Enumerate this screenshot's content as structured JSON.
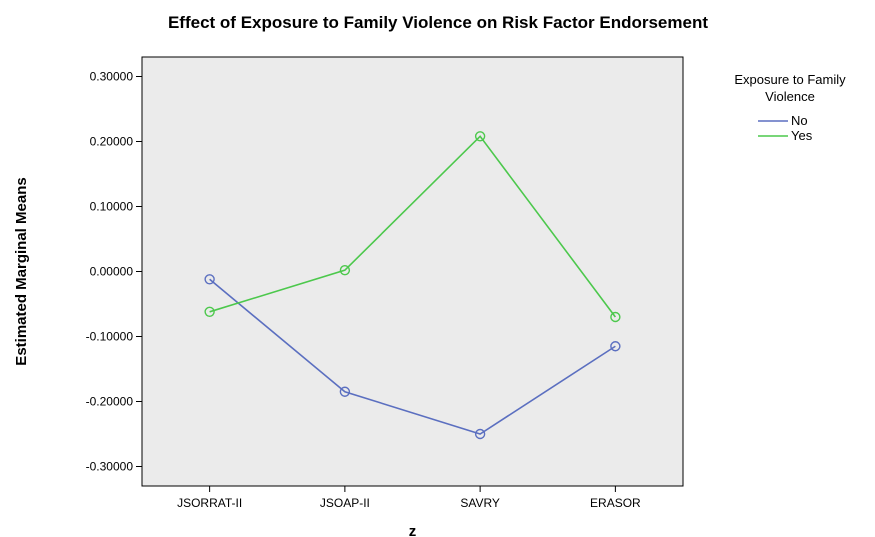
{
  "chart_data": {
    "type": "line",
    "title": "Effect of Exposure to Family Violence on Risk Factor Endorsement",
    "xlabel": "z",
    "ylabel": "Estimated Marginal Means",
    "categories": [
      "JSORRAT-II",
      "JSOAP-II",
      "SAVRY",
      "ERASOR"
    ],
    "y_ticks": [
      "-0.30000",
      "-0.20000",
      "-0.10000",
      "0.00000",
      "0.10000",
      "0.20000",
      "0.30000"
    ],
    "ylim": [
      -0.33,
      0.33
    ],
    "grid": false,
    "legend": {
      "title_line1": "Exposure to Family",
      "title_line2": "Violence",
      "placement": "top-right"
    },
    "series": [
      {
        "name": "No",
        "color": "#5b6fc0",
        "values": [
          -0.012,
          -0.185,
          -0.25,
          -0.115
        ]
      },
      {
        "name": "Yes",
        "color": "#4cc84c",
        "values": [
          -0.062,
          0.002,
          0.208,
          -0.07
        ]
      }
    ],
    "colors": {
      "plot_background": "#ebebeb",
      "axis": "#000000"
    }
  }
}
